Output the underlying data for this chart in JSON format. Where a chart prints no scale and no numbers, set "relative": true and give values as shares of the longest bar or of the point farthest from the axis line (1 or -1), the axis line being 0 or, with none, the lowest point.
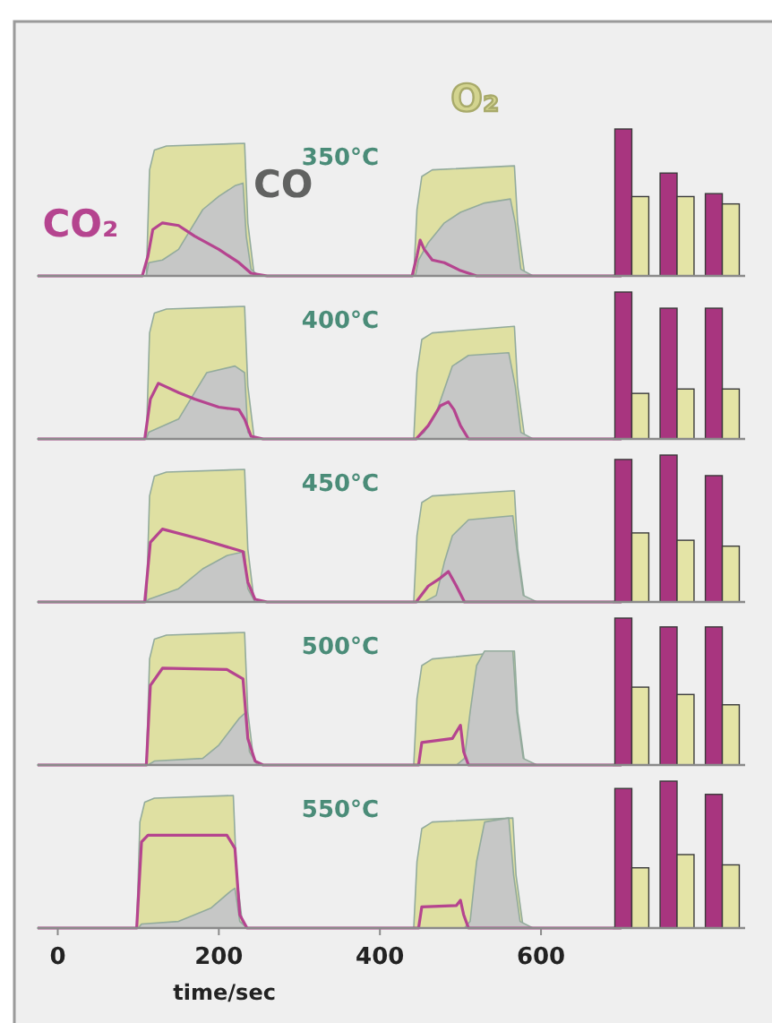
{
  "chart_data": [
    {
      "type": "area",
      "title": "350°C",
      "relative": true,
      "xlim": [
        -25,
        700
      ],
      "series": [
        {
          "name": "O₂",
          "type": "area",
          "color": "#dfe0a2",
          "x": [
            -25,
            110,
            114,
            120,
            135,
            232,
            236,
            244,
            442,
            446,
            452,
            465,
            567,
            571,
            580,
            700
          ],
          "values": [
            0,
            0,
            0.8,
            0.95,
            0.98,
            1,
            0.4,
            0,
            0,
            0.5,
            0.75,
            0.8,
            0.83,
            0.4,
            0,
            0
          ]
        },
        {
          "name": "CO",
          "type": "area",
          "color": "#c6c7c6",
          "x": [
            -25,
            110,
            113,
            130,
            150,
            165,
            180,
            200,
            220,
            230,
            234,
            240,
            250,
            444,
            448,
            460,
            480,
            500,
            530,
            562,
            568,
            575,
            590,
            700
          ],
          "values": [
            0,
            0,
            0.1,
            0.12,
            0.2,
            0.35,
            0.5,
            0.6,
            0.68,
            0.7,
            0.3,
            0.05,
            0,
            0,
            0.12,
            0.25,
            0.4,
            0.48,
            0.55,
            0.58,
            0.4,
            0.05,
            0,
            0
          ]
        },
        {
          "name": "CO₂",
          "type": "line",
          "color": "#b5448f",
          "x": [
            -25,
            105,
            112,
            118,
            130,
            150,
            170,
            200,
            225,
            240,
            260,
            440,
            446,
            450,
            455,
            465,
            480,
            500,
            520,
            700
          ],
          "values": [
            0,
            0,
            0.15,
            0.35,
            0.4,
            0.38,
            0.3,
            0.2,
            0.1,
            0.02,
            0,
            0,
            0.15,
            0.27,
            0.2,
            0.12,
            0.1,
            0.04,
            0,
            0
          ]
        }
      ]
    },
    {
      "type": "bar",
      "relative": true,
      "categories": [
        null,
        null,
        null
      ],
      "series": [
        {
          "color": "#a8357f",
          "values": [
            1,
            0.7,
            0.56
          ]
        },
        {
          "color": "#e4e4a6",
          "values": [
            0.54,
            0.54,
            0.49
          ]
        }
      ]
    },
    {
      "type": "area",
      "title": "400°C",
      "relative": true,
      "xlim": [
        -25,
        700
      ],
      "series": [
        {
          "type": "area",
          "color": "#dfe0a2",
          "x": [
            -25,
            110,
            114,
            120,
            135,
            232,
            236,
            244,
            442,
            446,
            452,
            465,
            567,
            571,
            580,
            700
          ],
          "values": [
            0,
            0,
            0.8,
            0.95,
            0.98,
            1,
            0.4,
            0,
            0,
            0.5,
            0.75,
            0.8,
            0.85,
            0.4,
            0,
            0
          ]
        },
        {
          "type": "area",
          "color": "#c6c7c6",
          "x": [
            -25,
            110,
            113,
            150,
            170,
            185,
            220,
            232,
            236,
            245,
            444,
            455,
            470,
            490,
            510,
            560,
            568,
            575,
            590,
            700
          ],
          "values": [
            0,
            0,
            0.05,
            0.15,
            0.35,
            0.5,
            0.55,
            0.5,
            0.05,
            0,
            0,
            0.05,
            0.2,
            0.55,
            0.63,
            0.65,
            0.4,
            0.05,
            0,
            0
          ]
        },
        {
          "type": "line",
          "color": "#b5448f",
          "x": [
            -25,
            108,
            115,
            125,
            150,
            170,
            200,
            225,
            232,
            240,
            255,
            445,
            460,
            475,
            485,
            492,
            500,
            510,
            700
          ],
          "values": [
            0,
            0,
            0.3,
            0.42,
            0.35,
            0.3,
            0.24,
            0.22,
            0.15,
            0.02,
            0,
            0,
            0.1,
            0.25,
            0.28,
            0.22,
            0.1,
            0,
            0
          ]
        }
      ]
    },
    {
      "type": "bar",
      "relative": true,
      "categories": [
        null,
        null,
        null
      ],
      "series": [
        {
          "color": "#a8357f",
          "values": [
            1,
            0.89,
            0.89
          ]
        },
        {
          "color": "#e4e4a6",
          "values": [
            0.31,
            0.34,
            0.34
          ]
        }
      ]
    },
    {
      "type": "area",
      "title": "450°C",
      "relative": true,
      "xlim": [
        -25,
        700
      ],
      "series": [
        {
          "type": "area",
          "color": "#dfe0a2",
          "x": [
            -25,
            110,
            114,
            120,
            135,
            232,
            236,
            244,
            442,
            446,
            452,
            465,
            567,
            571,
            580,
            700
          ],
          "values": [
            0,
            0,
            0.8,
            0.95,
            0.98,
            1,
            0.4,
            0,
            0,
            0.5,
            0.75,
            0.8,
            0.84,
            0.4,
            0,
            0
          ]
        },
        {
          "type": "area",
          "color": "#c6c7c6",
          "x": [
            -25,
            110,
            113,
            150,
            180,
            210,
            232,
            236,
            245,
            455,
            470,
            480,
            490,
            510,
            565,
            570,
            578,
            595,
            700
          ],
          "values": [
            0,
            0,
            0.02,
            0.1,
            0.25,
            0.35,
            0.38,
            0.1,
            0,
            0,
            0.05,
            0.3,
            0.5,
            0.62,
            0.65,
            0.4,
            0.05,
            0,
            0
          ]
        },
        {
          "type": "line",
          "color": "#b5448f",
          "x": [
            -25,
            108,
            115,
            130,
            180,
            230,
            236,
            245,
            260,
            445,
            460,
            475,
            485,
            495,
            505,
            700
          ],
          "values": [
            0,
            0,
            0.45,
            0.55,
            0.47,
            0.38,
            0.15,
            0.02,
            0,
            0,
            0.12,
            0.18,
            0.23,
            0.12,
            0,
            0
          ]
        }
      ]
    },
    {
      "type": "bar",
      "relative": true,
      "categories": [
        null,
        null,
        null
      ],
      "series": [
        {
          "color": "#a8357f",
          "values": [
            0.97,
            1,
            0.86
          ]
        },
        {
          "color": "#e4e4a6",
          "values": [
            0.47,
            0.42,
            0.38
          ]
        }
      ]
    },
    {
      "type": "area",
      "title": "500°C",
      "relative": true,
      "xlim": [
        -25,
        700
      ],
      "series": [
        {
          "type": "area",
          "color": "#dfe0a2",
          "x": [
            -25,
            110,
            114,
            120,
            135,
            232,
            236,
            244,
            442,
            446,
            452,
            465,
            567,
            571,
            580,
            700
          ],
          "values": [
            0,
            0,
            0.8,
            0.95,
            0.98,
            1,
            0.4,
            0,
            0,
            0.5,
            0.75,
            0.8,
            0.86,
            0.4,
            0,
            0
          ]
        },
        {
          "type": "area",
          "color": "#c6c7c6",
          "x": [
            -25,
            112,
            120,
            180,
            200,
            225,
            234,
            238,
            248,
            495,
            505,
            512,
            520,
            530,
            565,
            570,
            578,
            595,
            700
          ],
          "values": [
            0,
            0,
            0.03,
            0.05,
            0.15,
            0.35,
            0.4,
            0.1,
            0,
            0,
            0.05,
            0.4,
            0.75,
            0.86,
            0.86,
            0.4,
            0.05,
            0,
            0
          ]
        },
        {
          "type": "line",
          "color": "#b5448f",
          "x": [
            -25,
            110,
            115,
            130,
            210,
            230,
            236,
            245,
            255,
            448,
            452,
            490,
            500,
            504,
            510,
            700
          ],
          "values": [
            0,
            0,
            0.6,
            0.73,
            0.72,
            0.65,
            0.2,
            0.03,
            0,
            0,
            0.17,
            0.2,
            0.3,
            0.1,
            0,
            0
          ]
        }
      ]
    },
    {
      "type": "bar",
      "relative": true,
      "categories": [
        null,
        null,
        null
      ],
      "series": [
        {
          "color": "#a8357f",
          "values": [
            1,
            0.94,
            0.94
          ]
        },
        {
          "color": "#e4e4a6",
          "values": [
            0.53,
            0.48,
            0.41
          ]
        }
      ]
    },
    {
      "type": "area",
      "title": "550°C",
      "relative": true,
      "xlim": [
        -25,
        700
      ],
      "xticks": [
        0,
        200,
        400,
        600
      ],
      "xlabel": "time/sec",
      "tick_labels": "x",
      "series": [
        {
          "type": "area",
          "color": "#dfe0a2",
          "x": [
            -25,
            98,
            102,
            108,
            120,
            218,
            222,
            230,
            442,
            446,
            452,
            465,
            565,
            569,
            578,
            700
          ],
          "values": [
            0,
            0,
            0.8,
            0.95,
            0.98,
            1,
            0.4,
            0,
            0,
            0.5,
            0.75,
            0.8,
            0.83,
            0.4,
            0,
            0
          ]
        },
        {
          "type": "area",
          "color": "#c6c7c6",
          "x": [
            -25,
            100,
            104,
            150,
            190,
            215,
            220,
            226,
            235,
            505,
            512,
            520,
            530,
            560,
            566,
            574,
            590,
            700
          ],
          "values": [
            0,
            0,
            0.03,
            0.05,
            0.15,
            0.28,
            0.3,
            0.05,
            0,
            0,
            0.05,
            0.5,
            0.8,
            0.83,
            0.4,
            0.05,
            0,
            0
          ]
        },
        {
          "type": "line",
          "color": "#b5448f",
          "x": [
            -25,
            98,
            104,
            112,
            210,
            220,
            226,
            235,
            448,
            452,
            495,
            500,
            504,
            510,
            700
          ],
          "values": [
            0,
            0,
            0.65,
            0.7,
            0.7,
            0.6,
            0.1,
            0,
            0,
            0.16,
            0.17,
            0.21,
            0.1,
            0,
            0
          ]
        }
      ]
    },
    {
      "type": "bar",
      "relative": true,
      "categories": [
        null,
        null,
        null
      ],
      "series": [
        {
          "color": "#a8357f",
          "values": [
            0.95,
            1,
            0.91
          ]
        },
        {
          "color": "#e4e4a6",
          "values": [
            0.41,
            0.5,
            0.43
          ]
        }
      ]
    }
  ]
}
